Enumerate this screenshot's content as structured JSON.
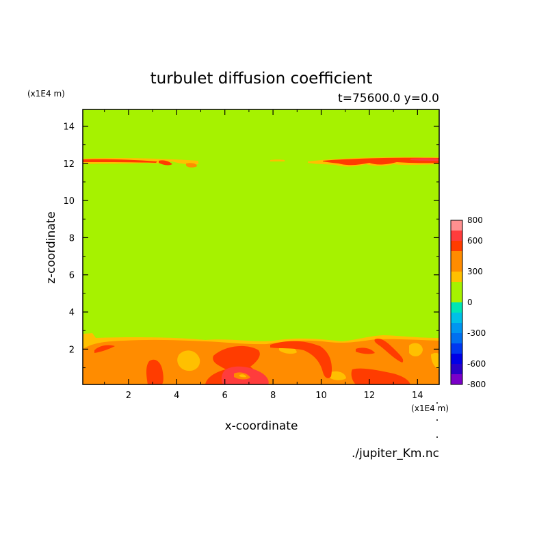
{
  "chart_data": {
    "type": "heatmap",
    "title": "turbulet diffusion coefficient",
    "subtitle": "t=75600.0 y=0.0",
    "xlabel": "x-coordinate",
    "ylabel": "z-coordinate",
    "x_unit": "(x1E4 m)",
    "y_unit": "(x1E4 m)",
    "xlim": [
      0.1,
      14.9
    ],
    "ylim": [
      0.1,
      14.9
    ],
    "x_ticks": [
      2,
      4,
      6,
      8,
      10,
      12,
      14
    ],
    "y_ticks": [
      2,
      4,
      6,
      8,
      10,
      12,
      14
    ],
    "background_value_color": "#a6f200",
    "colorbar": {
      "levels": [
        -800,
        -700,
        -600,
        -500,
        -400,
        -300,
        -200,
        -100,
        0,
        100,
        200,
        300,
        400,
        500,
        600,
        700,
        800
      ],
      "colors": [
        "#7a00c8",
        "#2a00c8",
        "#0000e6",
        "#0038f0",
        "#0070f0",
        "#0096f0",
        "#00c0e6",
        "#00e6b4",
        "#a6f200",
        "#a6f200",
        "#ffc000",
        "#ff8c00",
        "#ff8c00",
        "#ff3c00",
        "#ff3c3c",
        "#ff9090"
      ],
      "labels": [
        "800",
        "600",
        "300",
        "0",
        "-300",
        "-600",
        "-800"
      ],
      "label_values": [
        800,
        600,
        300,
        0,
        -300,
        -600,
        -800
      ]
    },
    "upper_band": {
      "z_center": 12.2,
      "x_ranges": [
        [
          0.1,
          4.9
        ],
        [
          9.4,
          14.9
        ]
      ],
      "values_approx": [
        400,
        600
      ]
    },
    "lower_layer": {
      "z_top": 2.5,
      "value_approx": 400,
      "eddy_max_approx": 700
    },
    "footer": "./jupiter_Km.nc"
  }
}
